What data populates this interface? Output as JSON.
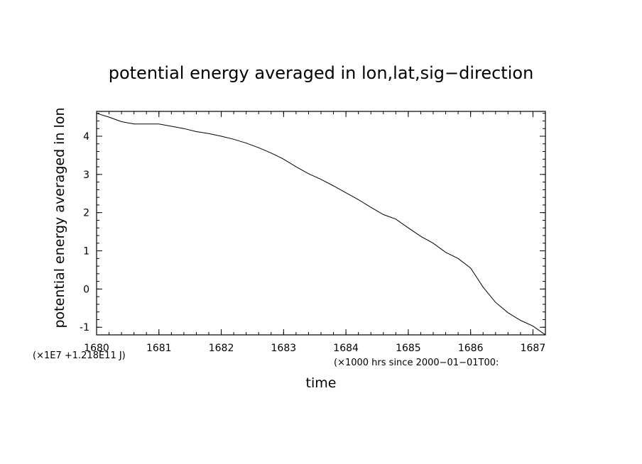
{
  "chart_data": {
    "type": "line",
    "title": "potential energy averaged in lon,lat,sig−direction",
    "xlabel": "time",
    "ylabel": "potential energy averaged in lon",
    "x_scale_note": "(×1000 hrs  since 2000−01−01T00:",
    "y_scale_note": "(×1E7 +1.218E11 J)",
    "xlim": [
      1680,
      1687.2
    ],
    "ylim": [
      -1.2,
      4.65
    ],
    "xticks": [
      1680,
      1681,
      1682,
      1683,
      1684,
      1685,
      1686,
      1687
    ],
    "yticks": [
      -1,
      0,
      1,
      2,
      3,
      4
    ],
    "grid": false,
    "series": [
      {
        "x": [
          1680.0,
          1680.2,
          1680.4,
          1680.6,
          1680.8,
          1681.0,
          1681.2,
          1681.4,
          1681.6,
          1681.8,
          1682.0,
          1682.2,
          1682.4,
          1682.6,
          1682.8,
          1683.0,
          1683.2,
          1683.4,
          1683.6,
          1683.8,
          1684.0,
          1684.2,
          1684.4,
          1684.6,
          1684.8,
          1685.0,
          1685.2,
          1685.4,
          1685.6,
          1685.8,
          1686.0,
          1686.2,
          1686.4,
          1686.6,
          1686.8,
          1687.0,
          1687.2
        ],
        "values": [
          4.6,
          4.5,
          4.38,
          4.32,
          4.32,
          4.32,
          4.26,
          4.2,
          4.12,
          4.07,
          4.0,
          3.92,
          3.82,
          3.7,
          3.56,
          3.4,
          3.2,
          3.02,
          2.87,
          2.7,
          2.52,
          2.34,
          2.14,
          1.95,
          1.83,
          1.6,
          1.38,
          1.2,
          0.96,
          0.8,
          0.55,
          0.05,
          -0.35,
          -0.62,
          -0.82,
          -0.97,
          -1.2
        ]
      }
    ]
  }
}
